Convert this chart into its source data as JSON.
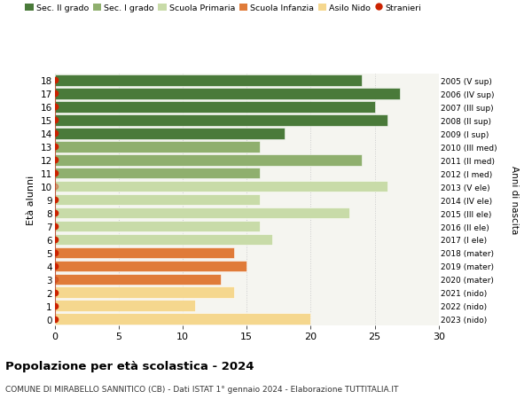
{
  "ages": [
    0,
    1,
    2,
    3,
    4,
    5,
    6,
    7,
    8,
    9,
    10,
    11,
    12,
    13,
    14,
    15,
    16,
    17,
    18
  ],
  "right_labels": [
    "2023 (nido)",
    "2022 (nido)",
    "2021 (nido)",
    "2020 (mater)",
    "2019 (mater)",
    "2018 (mater)",
    "2017 (I ele)",
    "2016 (II ele)",
    "2015 (III ele)",
    "2014 (IV ele)",
    "2013 (V ele)",
    "2012 (I med)",
    "2011 (II med)",
    "2010 (III med)",
    "2009 (I sup)",
    "2008 (II sup)",
    "2007 (III sup)",
    "2006 (IV sup)",
    "2005 (V sup)"
  ],
  "bar_values": [
    20,
    11,
    14,
    13,
    15,
    14,
    17,
    16,
    23,
    16,
    26,
    16,
    24,
    16,
    18,
    26,
    25,
    27,
    24
  ],
  "stranieri_has": [
    1,
    1,
    1,
    0,
    1,
    1,
    1,
    1,
    1,
    1,
    0,
    1,
    1,
    1,
    1,
    1,
    1,
    1,
    1
  ],
  "bar_colors": [
    "#f5d78e",
    "#f5d78e",
    "#f5d78e",
    "#e07b39",
    "#e07b39",
    "#e07b39",
    "#c8dba8",
    "#c8dba8",
    "#c8dba8",
    "#c8dba8",
    "#c8dba8",
    "#8faf6e",
    "#8faf6e",
    "#8faf6e",
    "#4a7a3a",
    "#4a7a3a",
    "#4a7a3a",
    "#4a7a3a",
    "#4a7a3a"
  ],
  "legend_labels": [
    "Sec. II grado",
    "Sec. I grado",
    "Scuola Primaria",
    "Scuola Infanzia",
    "Asilo Nido",
    "Stranieri"
  ],
  "legend_colors": [
    "#4a7a3a",
    "#8faf6e",
    "#c8dba8",
    "#e07b39",
    "#f5d78e",
    "#cc2200"
  ],
  "title": "Popolazione per età scolastica - 2024",
  "subtitle": "COMUNE DI MIRABELLO SANNITICO (CB) - Dati ISTAT 1° gennaio 2024 - Elaborazione TUTTITALIA.IT",
  "ylabel": "Età alunni",
  "ylabel_right": "Anni di nascita",
  "xlim": [
    0,
    30
  ],
  "xticks": [
    0,
    5,
    10,
    15,
    20,
    25,
    30
  ],
  "bg_color": "#ffffff",
  "plot_bg_color": "#f5f5f0",
  "grid_color": "#cccccc"
}
